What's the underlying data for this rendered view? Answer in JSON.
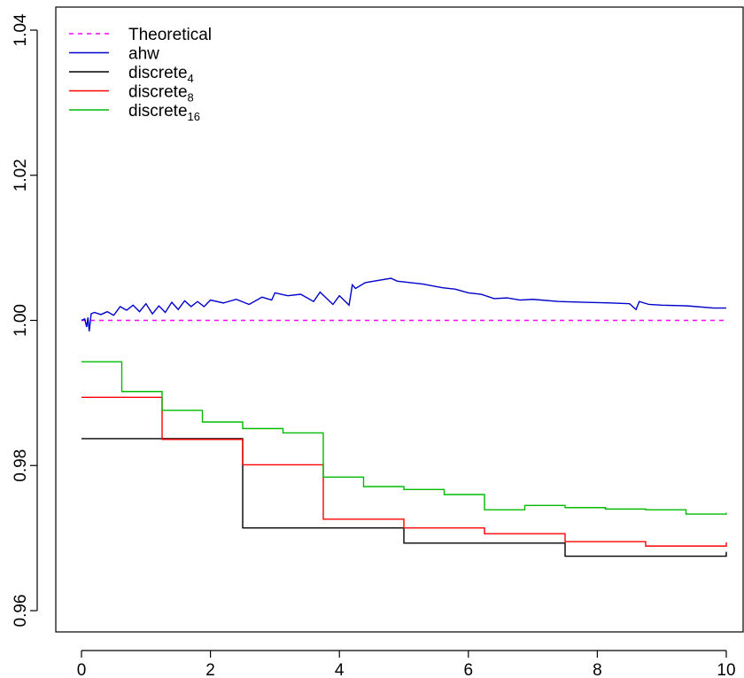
{
  "chart_data": {
    "type": "line",
    "title": "",
    "xlabel": "",
    "ylabel": "",
    "xlim": [
      0,
      10
    ],
    "ylim": [
      0.96,
      1.04
    ],
    "xticks": [
      "0",
      "2",
      "4",
      "6",
      "8",
      "10"
    ],
    "yticks": [
      "0.96",
      "0.98",
      "1.00",
      "1.02",
      "1.04"
    ],
    "xtick_values": [
      0,
      2,
      4,
      6,
      8,
      10
    ],
    "ytick_values": [
      0.96,
      0.98,
      1.0,
      1.02,
      1.04
    ],
    "grid": false,
    "legend_position": "top-left",
    "series": [
      {
        "name": "Theoretical",
        "label_main": "Theoretical",
        "label_sub": "",
        "color": "#ff00ff",
        "style": "dashed",
        "x": [
          0,
          10
        ],
        "y": [
          1.0,
          1.0
        ]
      },
      {
        "name": "ahw",
        "label_main": "ahw",
        "label_sub": "",
        "color": "#0000cc",
        "style": "solid",
        "x": [
          0,
          0.05,
          0.08,
          0.1,
          0.12,
          0.15,
          0.2,
          0.3,
          0.4,
          0.5,
          0.6,
          0.7,
          0.8,
          0.9,
          1.0,
          1.1,
          1.2,
          1.3,
          1.4,
          1.5,
          1.6,
          1.7,
          1.8,
          1.9,
          2.0,
          2.2,
          2.4,
          2.6,
          2.8,
          2.95,
          3.0,
          3.2,
          3.4,
          3.6,
          3.7,
          3.9,
          4.0,
          4.15,
          4.2,
          4.25,
          4.4,
          4.6,
          4.8,
          4.9,
          5.0,
          5.3,
          5.6,
          5.8,
          6.0,
          6.2,
          6.4,
          6.6,
          6.8,
          7.0,
          7.4,
          7.8,
          8.2,
          8.5,
          8.6,
          8.65,
          8.8,
          9.0,
          9.4,
          9.8,
          10.0
        ],
        "y": [
          1.0,
          1.0002,
          0.9991,
          1.0004,
          0.9985,
          1.0009,
          1.0011,
          1.0008,
          1.0012,
          1.0007,
          1.0019,
          1.0014,
          1.0021,
          1.0012,
          1.0023,
          1.0009,
          1.002,
          1.0011,
          1.0025,
          1.0015,
          1.0027,
          1.0019,
          1.0026,
          1.0019,
          1.0028,
          1.0024,
          1.0029,
          1.0022,
          1.0032,
          1.0028,
          1.0038,
          1.0034,
          1.0036,
          1.0026,
          1.0039,
          1.0022,
          1.0034,
          1.0021,
          1.0049,
          1.0044,
          1.0052,
          1.0055,
          1.0058,
          1.0054,
          1.0053,
          1.005,
          1.0045,
          1.0043,
          1.0038,
          1.0036,
          1.003,
          1.0031,
          1.0028,
          1.0029,
          1.0026,
          1.0025,
          1.0024,
          1.0023,
          1.0015,
          1.0026,
          1.0022,
          1.0021,
          1.002,
          1.0017,
          1.0017
        ]
      },
      {
        "name": "discrete4",
        "label_main": "discrete",
        "label_sub": "4",
        "color": "#000000",
        "style": "step",
        "x": [
          0,
          2.5,
          5.0,
          7.5,
          10.0
        ],
        "y": [
          0.9837,
          0.9714,
          0.9693,
          0.9675,
          0.9681
        ]
      },
      {
        "name": "discrete8",
        "label_main": "discrete",
        "label_sub": "8",
        "color": "#ff0000",
        "style": "step",
        "x": [
          0,
          1.25,
          2.5,
          3.75,
          5.0,
          6.25,
          7.5,
          8.75,
          10.0
        ],
        "y": [
          0.9894,
          0.9836,
          0.9801,
          0.9726,
          0.9714,
          0.9706,
          0.9695,
          0.9689,
          0.9694
        ]
      },
      {
        "name": "discrete16",
        "label_main": "discrete",
        "label_sub": "16",
        "color": "#00bb00",
        "style": "step",
        "x": [
          0,
          0.625,
          1.25,
          1.875,
          2.5,
          3.125,
          3.75,
          4.375,
          5.0,
          5.625,
          6.25,
          6.875,
          7.5,
          8.125,
          8.75,
          9.375,
          10.0
        ],
        "y": [
          0.9943,
          0.9902,
          0.9876,
          0.986,
          0.9851,
          0.9845,
          0.9784,
          0.9771,
          0.9767,
          0.976,
          0.9739,
          0.9745,
          0.9742,
          0.974,
          0.9739,
          0.9733,
          0.9735
        ]
      }
    ]
  }
}
